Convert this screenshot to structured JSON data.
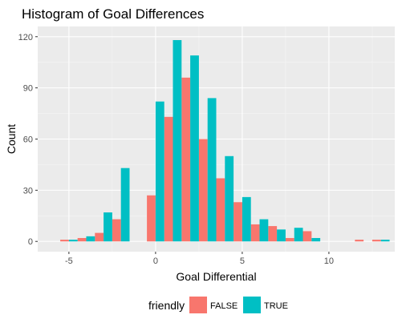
{
  "chart_data": {
    "type": "bar",
    "title": "Histogram of Goal Differences",
    "xlabel": "Goal Differential",
    "ylabel": "Count",
    "xlim": [
      -6.8,
      13.8
    ],
    "ylim": [
      -6,
      126
    ],
    "xticks": [
      -5,
      0,
      5,
      10
    ],
    "yticks": [
      0,
      30,
      60,
      90,
      120
    ],
    "xtick_labels": [
      "-5",
      "0",
      "5",
      "10"
    ],
    "ytick_labels": [
      "0",
      "30",
      "60",
      "90",
      "120"
    ],
    "grid": true,
    "legend": {
      "position": "bottom",
      "title": "friendly",
      "entries": [
        {
          "label": "FALSE",
          "color": "#F8766D"
        },
        {
          "label": "TRUE",
          "color": "#00BFC4"
        }
      ]
    },
    "x": [
      -5,
      -4,
      -3,
      -2,
      -1,
      0,
      1,
      2,
      3,
      4,
      5,
      6,
      7,
      8,
      9,
      10,
      11,
      12,
      13
    ],
    "series": [
      {
        "name": "FALSE",
        "color": "#F8766D",
        "values": [
          1,
          2,
          5,
          13,
          0,
          27,
          73,
          96,
          60,
          37,
          23,
          10,
          9,
          2,
          6,
          0,
          0,
          1,
          1
        ]
      },
      {
        "name": "TRUE",
        "color": "#00BFC4",
        "values": [
          1,
          3,
          17,
          43,
          0,
          82,
          118,
          109,
          84,
          50,
          26,
          13,
          7,
          8,
          2,
          0,
          0,
          0,
          1
        ]
      }
    ]
  }
}
